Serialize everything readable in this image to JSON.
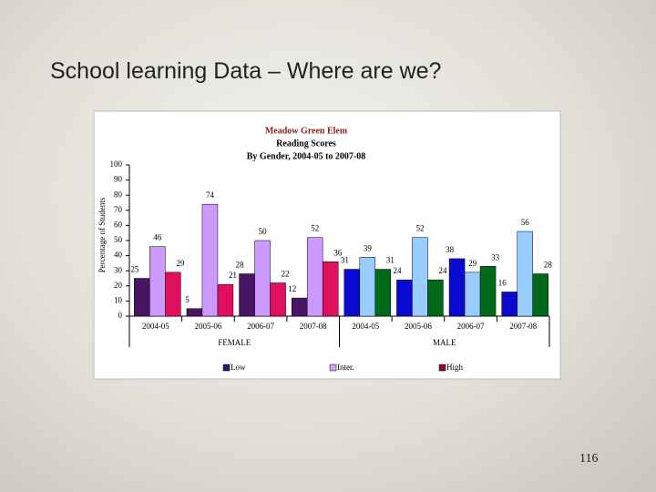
{
  "slide_title": "School learning Data – Where are we?",
  "page_number": "116",
  "chart_data": {
    "type": "bar",
    "title": "Meadow Green Elem",
    "subtitle": [
      "Reading Scores",
      "By Gender, 2004-05 to 2007-08"
    ],
    "y_label": "Percentage of Students",
    "categories": [
      "2004-05",
      "2005-06",
      "2006-07",
      "2007-08",
      "2004-05",
      "2005-06",
      "2006-07",
      "2007-08"
    ],
    "groups": [
      "FEMALE",
      "MALE"
    ],
    "ylim": [
      0,
      100
    ],
    "yticks": [
      0,
      10,
      20,
      30,
      40,
      50,
      60,
      70,
      80,
      90,
      100
    ],
    "grid": false,
    "series": [
      {
        "name": "Low",
        "color": "#2a1a6a",
        "group_colors": [
          "#4a1465",
          "#0a0ad0"
        ],
        "values": [
          25,
          5,
          28,
          12,
          31,
          24,
          38,
          16
        ]
      },
      {
        "name": "Inter.",
        "color": "#c9a6f2",
        "group_colors": [
          "#cc99ff",
          "#99ccff"
        ],
        "values": [
          46,
          74,
          50,
          52,
          39,
          52,
          29,
          56
        ]
      },
      {
        "name": "High",
        "color": "#8a1030",
        "group_colors": [
          "#e0105f",
          "#006a1a"
        ],
        "values": [
          29,
          21,
          22,
          36,
          31,
          24,
          33,
          28
        ]
      }
    ]
  }
}
